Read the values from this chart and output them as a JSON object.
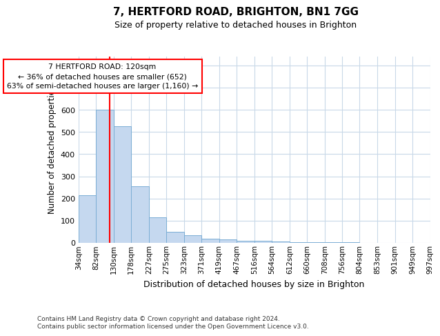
{
  "title": "7, HERTFORD ROAD, BRIGHTON, BN1 7GG",
  "subtitle": "Size of property relative to detached houses in Brighton",
  "xlabel": "Distribution of detached houses by size in Brighton",
  "ylabel": "Number of detached properties",
  "bar_heights": [
    215,
    600,
    525,
    255,
    115,
    50,
    33,
    18,
    15,
    10,
    8,
    5,
    4,
    3,
    2,
    2,
    1,
    1,
    1,
    1
  ],
  "bin_edges": [
    34,
    82,
    130,
    178,
    227,
    275,
    323,
    371,
    419,
    467,
    516,
    564,
    612,
    660,
    708,
    756,
    804,
    853,
    901,
    949,
    997
  ],
  "xtick_labels": [
    "34sqm",
    "82sqm",
    "130sqm",
    "178sqm",
    "227sqm",
    "275sqm",
    "323sqm",
    "371sqm",
    "419sqm",
    "467sqm",
    "516sqm",
    "564sqm",
    "612sqm",
    "660sqm",
    "708sqm",
    "756sqm",
    "804sqm",
    "853sqm",
    "901sqm",
    "949sqm",
    "997sqm"
  ],
  "bar_color": "#c5d8ef",
  "bar_edge_color": "#7aadd4",
  "red_line_x": 120,
  "ylim": [
    0,
    840
  ],
  "yticks": [
    0,
    100,
    200,
    300,
    400,
    500,
    600,
    700,
    800
  ],
  "annotation_line1": "7 HERTFORD ROAD: 120sqm",
  "annotation_line2": "← 36% of detached houses are smaller (652)",
  "annotation_line3": "63% of semi-detached houses are larger (1,160) →",
  "footnote": "Contains HM Land Registry data © Crown copyright and database right 2024.\nContains public sector information licensed under the Open Government Licence v3.0.",
  "background_color": "#ffffff",
  "grid_color": "#c8d8e8"
}
